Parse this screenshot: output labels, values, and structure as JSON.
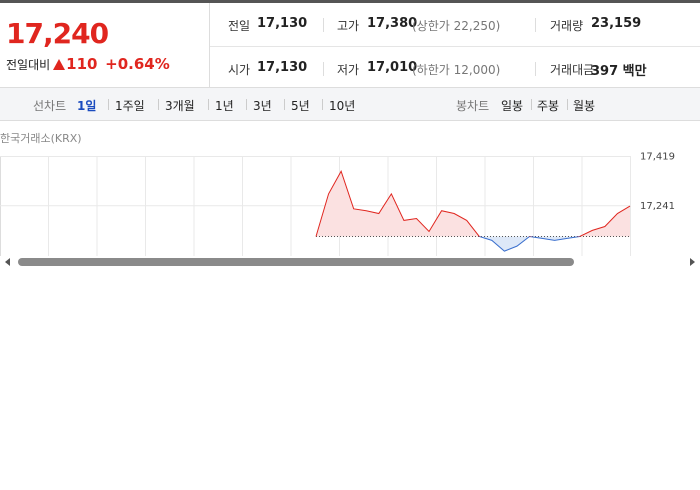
{
  "quote": {
    "price": "17,240",
    "change_label": "전일대비",
    "change": "110",
    "change_rate": "+0.64%",
    "stats": [
      [
        {
          "label": "전일",
          "value": "17,130"
        },
        {
          "label": "고가",
          "value": "17,380",
          "note": "(상한가 22,250)"
        },
        {
          "label": "거래량",
          "value": "23,159"
        }
      ],
      [
        {
          "label": "시가",
          "value": "17,130"
        },
        {
          "label": "저가",
          "value": "17,010",
          "note": "(하한가 12,000)"
        },
        {
          "label": "거래대금",
          "value": "397 백만"
        }
      ]
    ]
  },
  "tabs": {
    "line_label": "선차트",
    "line": [
      "1일",
      "1주일",
      "3개월",
      "1년",
      "3년",
      "5년",
      "10년"
    ],
    "active": 0,
    "candle_label": "봉차트",
    "candle": [
      "일봉",
      "주봉",
      "월봉"
    ]
  },
  "chart": {
    "source": "한국거래소(KRX)",
    "ylim": [
      17063,
      17515
    ],
    "yticks": [
      {
        "value": 17419,
        "label": "17,419"
      },
      {
        "value": 17241,
        "label": "17,241"
      }
    ],
    "baseline": 17130,
    "up_color": "#e0261f",
    "down_color": "#3a6fcd",
    "values": [
      17130,
      17284,
      17366,
      17230,
      17223,
      17213,
      17284,
      17188,
      17195,
      17148,
      17223,
      17213,
      17188,
      17130,
      17116,
      17077,
      17095,
      17130,
      17123,
      17116,
      17123,
      17130,
      17152,
      17166,
      17213,
      17240
    ]
  }
}
